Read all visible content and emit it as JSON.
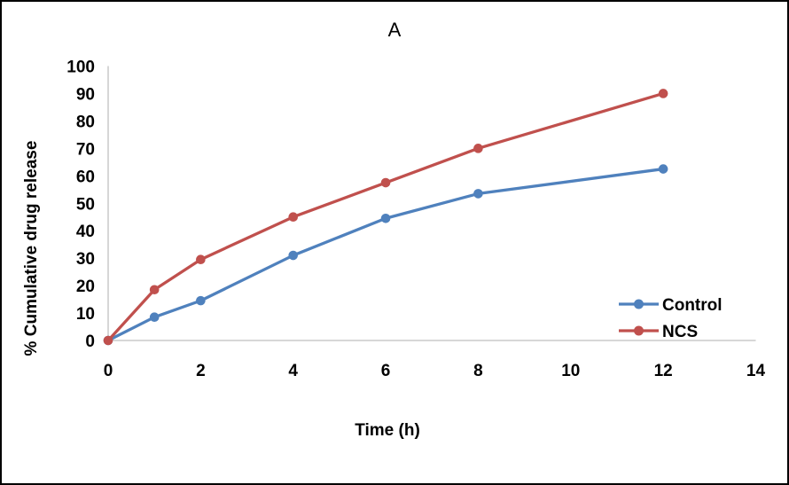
{
  "chart_data": {
    "type": "line",
    "title": "A",
    "xlabel": "Time (h)",
    "ylabel": "% Cumulative drug release",
    "x": [
      0,
      1,
      2,
      4,
      6,
      8,
      12
    ],
    "xlim": [
      0,
      14
    ],
    "ylim": [
      0,
      100
    ],
    "x_ticks": [
      0,
      2,
      4,
      6,
      8,
      10,
      12,
      14
    ],
    "y_ticks": [
      0,
      10,
      20,
      30,
      40,
      50,
      60,
      70,
      80,
      90,
      100
    ],
    "grid": false,
    "legend_position": "right-middle",
    "axis_color": "#BFBFBF",
    "marker": "circle",
    "series": [
      {
        "name": "Control",
        "color": "#4F81BD",
        "values": [
          0,
          8.5,
          14.5,
          31,
          44.5,
          53.5,
          62.5
        ]
      },
      {
        "name": "NCS",
        "color": "#C0504D",
        "values": [
          0,
          18.5,
          29.5,
          45,
          57.5,
          70,
          90
        ]
      }
    ]
  }
}
